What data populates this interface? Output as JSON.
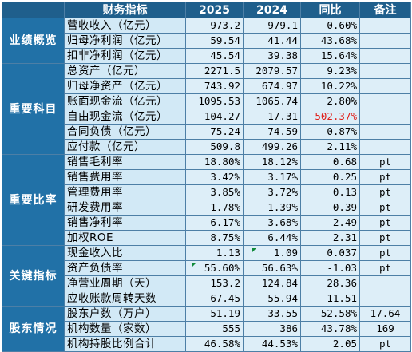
{
  "table": {
    "headers": [
      "",
      "财务指标",
      "2025",
      "2024",
      "同比",
      "备注"
    ],
    "groups": [
      {
        "category": "业绩概览",
        "rows": [
          {
            "indicator": "营收收入（亿元）",
            "v2025": "973.2",
            "v2024": "979.1",
            "yoy": "-0.60%",
            "note": ""
          },
          {
            "indicator": "归母净利润（亿元）",
            "v2025": "59.54",
            "v2024": "41.44",
            "yoy": "43.68%",
            "note": ""
          },
          {
            "indicator": "扣非净利润（亿元）",
            "v2025": "45.54",
            "v2024": "39.38",
            "yoy": "15.64%",
            "note": ""
          }
        ]
      },
      {
        "category": "重要科目",
        "rows": [
          {
            "indicator": "总资产（亿元）",
            "v2025": "2271.5",
            "v2024": "2079.57",
            "yoy": "9.23%",
            "note": ""
          },
          {
            "indicator": "归母净资产（亿元）",
            "v2025": "743.92",
            "v2024": "674.97",
            "yoy": "10.22%",
            "note": ""
          },
          {
            "indicator": "账面现金流（亿元）",
            "v2025": "1095.53",
            "v2024": "1065.74",
            "yoy": "2.80%",
            "note": ""
          },
          {
            "indicator": "自由现金流（亿元）",
            "v2025": "-104.27",
            "v2024": "-17.31",
            "yoy": "502.37%",
            "note": "",
            "yoy_color": "#e0201b"
          },
          {
            "indicator": "合同负债（亿元）",
            "v2025": "75.24",
            "v2024": "74.59",
            "yoy": "0.87%",
            "note": ""
          },
          {
            "indicator": "应付款（亿元）",
            "v2025": "509.8",
            "v2024": "499.26",
            "yoy": "2.11%",
            "note": ""
          }
        ]
      },
      {
        "category": "重要比率",
        "rows": [
          {
            "indicator": "销售毛利率",
            "v2025": "18.80%",
            "v2024": "18.12%",
            "yoy": "0.68",
            "note": "pt"
          },
          {
            "indicator": "销售费用率",
            "v2025": "3.42%",
            "v2024": "3.17%",
            "yoy": "0.25",
            "note": "pt"
          },
          {
            "indicator": "管理费用率",
            "v2025": "3.85%",
            "v2024": "3.72%",
            "yoy": "0.13",
            "note": "pt"
          },
          {
            "indicator": "研发费用率",
            "v2025": "1.78%",
            "v2024": "1.39%",
            "yoy": "0.39",
            "note": "pt"
          },
          {
            "indicator": "销售净利率",
            "v2025": "6.17%",
            "v2024": "3.68%",
            "yoy": "2.49",
            "note": "pt"
          },
          {
            "indicator": "加权ROE",
            "v2025": "8.75%",
            "v2024": "6.44%",
            "yoy": "2.31",
            "note": "pt"
          }
        ]
      },
      {
        "category": "关键指标",
        "rows": [
          {
            "indicator": "现金收入比",
            "v2025": "1.13",
            "v2024": "1.09",
            "yoy": "0.037",
            "note": "pt"
          },
          {
            "indicator": "资产负债率",
            "v2025": "55.60%",
            "v2024": "56.63%",
            "yoy": "-1.03",
            "note": "pt"
          },
          {
            "indicator": "净营业周期（天）",
            "v2025": "153.2",
            "v2024": "124.84",
            "yoy": "28.36",
            "note": ""
          },
          {
            "indicator": "应收账款周转天数",
            "v2025": "67.45",
            "v2024": "55.94",
            "yoy": "11.51",
            "note": ""
          }
        ]
      },
      {
        "category": "股东情况",
        "rows": [
          {
            "indicator": "股东户数（万户）",
            "v2025": "51.19",
            "v2024": "33.55",
            "yoy": "52.58%",
            "note": "17.64"
          },
          {
            "indicator": "机构数量（家数）",
            "v2025": "555",
            "v2024": "386",
            "yoy": "43.78%",
            "note": "169"
          },
          {
            "indicator": "机构持股比例合计",
            "v2025": "46.58%",
            "v2024": "44.53%",
            "yoy": "2.05",
            "note": "pt"
          }
        ]
      }
    ]
  }
}
